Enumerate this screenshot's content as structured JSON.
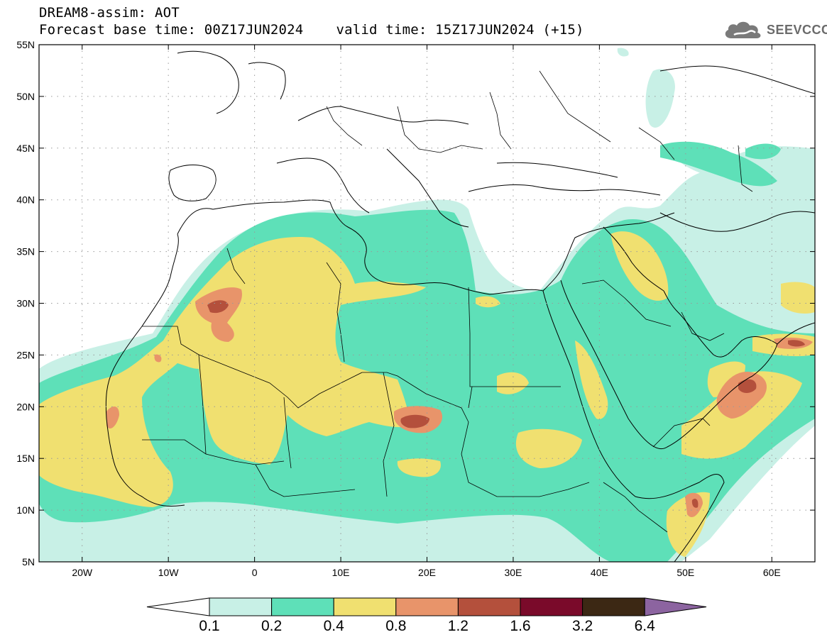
{
  "header": {
    "line1": "DREAM8-assim: AOT",
    "base_time": "Forecast base time: 00Z17JUN2024",
    "valid_time": "valid time: 15Z17JUN2024 (+15)"
  },
  "logo": {
    "text": "SEEVCCC",
    "icon": "cloud-icon"
  },
  "map": {
    "lon_range": [
      -25,
      65
    ],
    "lat_range": [
      5,
      55
    ],
    "lat_ticks": [
      {
        "value": 55,
        "label": "55N"
      },
      {
        "value": 50,
        "label": "50N"
      },
      {
        "value": 45,
        "label": "45N"
      },
      {
        "value": 40,
        "label": "40N"
      },
      {
        "value": 35,
        "label": "35N"
      },
      {
        "value": 30,
        "label": "30N"
      },
      {
        "value": 25,
        "label": "25N"
      },
      {
        "value": 20,
        "label": "20N"
      },
      {
        "value": 15,
        "label": "15N"
      },
      {
        "value": 10,
        "label": "10N"
      },
      {
        "value": 5,
        "label": "5N"
      }
    ],
    "lon_ticks": [
      {
        "value": -20,
        "label": "20W"
      },
      {
        "value": -10,
        "label": "10W"
      },
      {
        "value": 0,
        "label": "0"
      },
      {
        "value": 10,
        "label": "10E"
      },
      {
        "value": 20,
        "label": "20E"
      },
      {
        "value": 30,
        "label": "30E"
      },
      {
        "value": 40,
        "label": "40E"
      },
      {
        "value": 50,
        "label": "50E"
      },
      {
        "value": 60,
        "label": "60E"
      }
    ]
  },
  "colorbar": {
    "bins": [
      {
        "color": "#c8f0e6"
      },
      {
        "color": "#5ee0b8"
      },
      {
        "color": "#f0e070"
      },
      {
        "color": "#e8946a"
      },
      {
        "color": "#b4503c"
      },
      {
        "color": "#7a0a2a"
      },
      {
        "color": "#3c2814"
      }
    ],
    "under_color": "#ffffff",
    "over_color": "#8c64a0",
    "labels": [
      "0.1",
      "0.2",
      "0.4",
      "0.8",
      "1.2",
      "1.6",
      "3.2",
      "6.4"
    ]
  }
}
